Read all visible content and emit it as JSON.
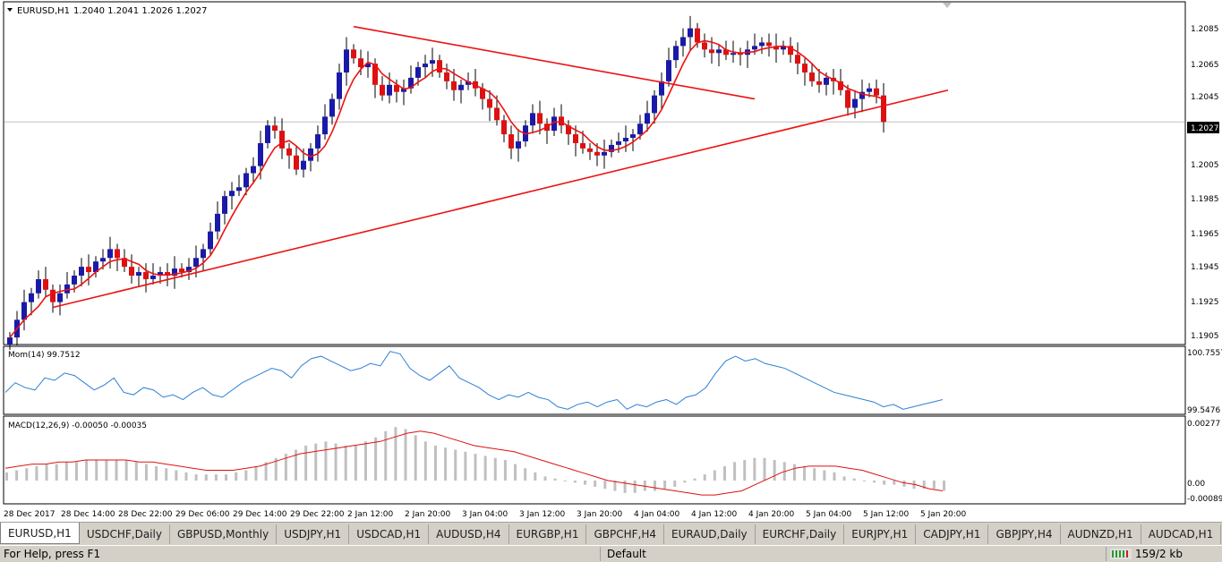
{
  "chart_header": {
    "symbol_title": "EURUSD,H1",
    "ohlc": "1.2040 1.2041 1.2026 1.2027",
    "dropdown_icon": "triangle-down-icon"
  },
  "chart_data": [
    {
      "type": "candlestick",
      "title": "EURUSD,H1",
      "y_ticks": [
        "1.2085",
        "1.2065",
        "1.2045",
        "1.2005",
        "1.1985",
        "1.1965",
        "1.1945",
        "1.1925",
        "1.1905"
      ],
      "ylim": [
        1.1902,
        1.2094
      ],
      "current_price_label": "1.2027",
      "x_tick_labels": [
        "28 Dec 2017",
        "28 Dec 14:00",
        "28 Dec 22:00",
        "29 Dec 06:00",
        "29 Dec 14:00",
        "29 Dec 22:00",
        "2 Jan 12:00",
        "2 Jan 20:00",
        "3 Jan 04:00",
        "3 Jan 12:00",
        "3 Jan 20:00",
        "4 Jan 04:00",
        "4 Jan 12:00",
        "4 Jan 20:00",
        "5 Jan 04:00",
        "5 Jan 12:00",
        "5 Jan 20:00"
      ],
      "colors": {
        "bull": "#1a1aa8",
        "bear": "#dd1111",
        "ma_line": "#ee1111",
        "trendline": "#ee1111",
        "price_line": "#c0c0c0"
      },
      "closes": [
        1.1905,
        1.1915,
        1.1925,
        1.193,
        1.1938,
        1.1932,
        1.1925,
        1.193,
        1.1935,
        1.194,
        1.1945,
        1.1942,
        1.1948,
        1.195,
        1.1955,
        1.195,
        1.1945,
        1.194,
        1.1942,
        1.1938,
        1.194,
        1.1942,
        1.194,
        1.1944,
        1.1942,
        1.1945,
        1.195,
        1.1955,
        1.1965,
        1.1975,
        1.1985,
        1.1988,
        1.199,
        1.1998,
        1.2002,
        1.2015,
        1.2025,
        1.2022,
        1.2012,
        1.2008,
        1.2,
        1.2005,
        1.2012,
        1.202,
        1.203,
        1.204,
        1.2055,
        1.2068,
        1.2063,
        1.2058,
        1.206,
        1.2048,
        1.2042,
        1.2048,
        1.2044,
        1.2046,
        1.2052,
        1.2058,
        1.206,
        1.2062,
        1.2055,
        1.205,
        1.2045,
        1.2048,
        1.205,
        1.2046,
        1.204,
        1.2035,
        1.2028,
        1.202,
        1.2012,
        1.2016,
        1.2025,
        1.2032,
        1.2026,
        1.2022,
        1.203,
        1.2025,
        1.202,
        1.2015,
        1.2012,
        1.201,
        1.2008,
        1.201,
        1.2014,
        1.2016,
        1.2018,
        1.202,
        1.2026,
        1.2032,
        1.2042,
        1.205,
        1.2062,
        1.207,
        1.2075,
        1.208,
        1.2072,
        1.2068,
        1.2066,
        1.2068,
        1.2065,
        1.2066,
        1.2065,
        1.2068,
        1.207,
        1.2072,
        1.207,
        1.2068,
        1.207,
        1.2065,
        1.206,
        1.2055,
        1.205,
        1.2048,
        1.2052,
        1.205,
        1.2045,
        1.2035,
        1.204,
        1.2044,
        1.2046,
        1.2042,
        1.2027
      ],
      "ma_period": 5,
      "trendlines": [
        {
          "name": "descending-trendline",
          "points": [
            [
              48,
              1.2081
            ],
            [
              104,
              1.204
            ]
          ]
        },
        {
          "name": "ascending-trendline",
          "points": [
            [
              6,
              1.1922
            ],
            [
              131,
              1.2045
            ]
          ]
        }
      ]
    },
    {
      "type": "line",
      "title": "Mom(14) 99.7512",
      "y_ticks": [
        "100.7557",
        "99.5476"
      ],
      "ylim": [
        99.5,
        100.8
      ],
      "color": "#2b80d4",
      "values": [
        99.9,
        100.1,
        100.0,
        99.95,
        100.2,
        100.15,
        100.3,
        100.25,
        100.1,
        99.95,
        100.05,
        100.2,
        99.9,
        99.85,
        100.0,
        99.95,
        99.8,
        99.85,
        99.75,
        99.9,
        100.0,
        99.85,
        99.8,
        99.95,
        100.1,
        100.2,
        100.3,
        100.4,
        100.35,
        100.2,
        100.45,
        100.6,
        100.65,
        100.55,
        100.45,
        100.35,
        100.4,
        100.5,
        100.45,
        100.75,
        100.7,
        100.4,
        100.25,
        100.15,
        100.3,
        100.45,
        100.2,
        100.1,
        100.0,
        99.85,
        99.75,
        99.85,
        99.8,
        99.9,
        99.8,
        99.75,
        99.6,
        99.55,
        99.65,
        99.7,
        99.6,
        99.7,
        99.75,
        99.55,
        99.65,
        99.6,
        99.7,
        99.75,
        99.65,
        99.8,
        99.85,
        100.0,
        100.3,
        100.55,
        100.65,
        100.55,
        100.6,
        100.5,
        100.45,
        100.4,
        100.3,
        100.2,
        100.1,
        100.0,
        99.9,
        99.85,
        99.8,
        99.75,
        99.7,
        99.6,
        99.65,
        99.55,
        99.6,
        99.65,
        99.7,
        99.75
      ]
    },
    {
      "type": "bar",
      "title": "MACD(12,26,9) -0.00050 -0.00035",
      "y_ticks": [
        "0.00277",
        "0.00",
        "-0.00089"
      ],
      "ylim": [
        -0.001,
        0.003
      ],
      "histogram_color": "#c0c0c0",
      "signal_color": "#dd1111",
      "histogram": [
        0.0004,
        0.0005,
        0.0006,
        0.0007,
        0.0008,
        0.0008,
        0.0009,
        0.0009,
        0.001,
        0.001,
        0.001,
        0.001,
        0.001,
        0.0009,
        0.0008,
        0.0007,
        0.0006,
        0.0005,
        0.0004,
        0.0003,
        0.0003,
        0.0003,
        0.0003,
        0.0004,
        0.0005,
        0.0007,
        0.0009,
        0.0011,
        0.0013,
        0.0015,
        0.0017,
        0.0018,
        0.0019,
        0.0018,
        0.0017,
        0.0017,
        0.0019,
        0.0021,
        0.0024,
        0.0026,
        0.0025,
        0.0022,
        0.0019,
        0.0017,
        0.0016,
        0.0015,
        0.0014,
        0.0013,
        0.0012,
        0.0011,
        0.001,
        0.0008,
        0.0006,
        0.0004,
        0.0002,
        0.0001,
        0.0,
        -0.0001,
        -0.0002,
        -0.0003,
        -0.0004,
        -0.0005,
        -0.0006,
        -0.0006,
        -0.0005,
        -0.0005,
        -0.0004,
        -0.0003,
        -0.0001,
        0.0001,
        0.0003,
        0.0005,
        0.0007,
        0.0009,
        0.001,
        0.0011,
        0.0011,
        0.001,
        0.0009,
        0.0008,
        0.0007,
        0.0006,
        0.0005,
        0.0004,
        0.0002,
        0.0001,
        0.0,
        -0.0001,
        -0.0002,
        -0.0002,
        -0.0003,
        -0.0004,
        -0.0004,
        -0.0004,
        -0.0005
      ],
      "signal": [
        0.0006,
        0.0007,
        0.0008,
        0.0008,
        0.0009,
        0.0009,
        0.001,
        0.001,
        0.001,
        0.001,
        0.0009,
        0.0009,
        0.0008,
        0.0007,
        0.0006,
        0.0005,
        0.0005,
        0.0005,
        0.0006,
        0.0007,
        0.0009,
        0.0011,
        0.0013,
        0.0014,
        0.0015,
        0.0016,
        0.0017,
        0.0018,
        0.0019,
        0.0021,
        0.0023,
        0.0024,
        0.0023,
        0.0021,
        0.0019,
        0.0017,
        0.0016,
        0.0015,
        0.0014,
        0.0012,
        0.001,
        0.0008,
        0.0006,
        0.0004,
        0.0002,
        0.0,
        -0.0001,
        -0.0002,
        -0.0003,
        -0.0004,
        -0.0005,
        -0.0006,
        -0.0007,
        -0.0007,
        -0.0006,
        -0.0005,
        -0.0002,
        0.0001,
        0.0004,
        0.0006,
        0.0007,
        0.0007,
        0.0007,
        0.0006,
        0.0005,
        0.0003,
        0.0001,
        -0.0001,
        -0.0002,
        -0.0004,
        -0.0005
      ]
    }
  ],
  "tabs": [
    "EURUSD,H1",
    "USDCHF,Daily",
    "GBPUSD,Monthly",
    "USDJPY,H1",
    "USDCAD,H1",
    "AUDUSD,H4",
    "EURGBP,H1",
    "GBPCHF,H4",
    "EURAUD,Daily",
    "EURCHF,Daily",
    "EURJPY,H1",
    "CADJPY,H1",
    "GBPJPY,H4",
    "AUDNZD,H1",
    "AUDCAD,H1"
  ],
  "tabs_overflow_icon": "chevron-right-icon",
  "status": {
    "help_text": "For Help, press F1",
    "profile": "Default",
    "traffic": "159/2 kb",
    "connection_icon": "connection-bars-icon"
  }
}
